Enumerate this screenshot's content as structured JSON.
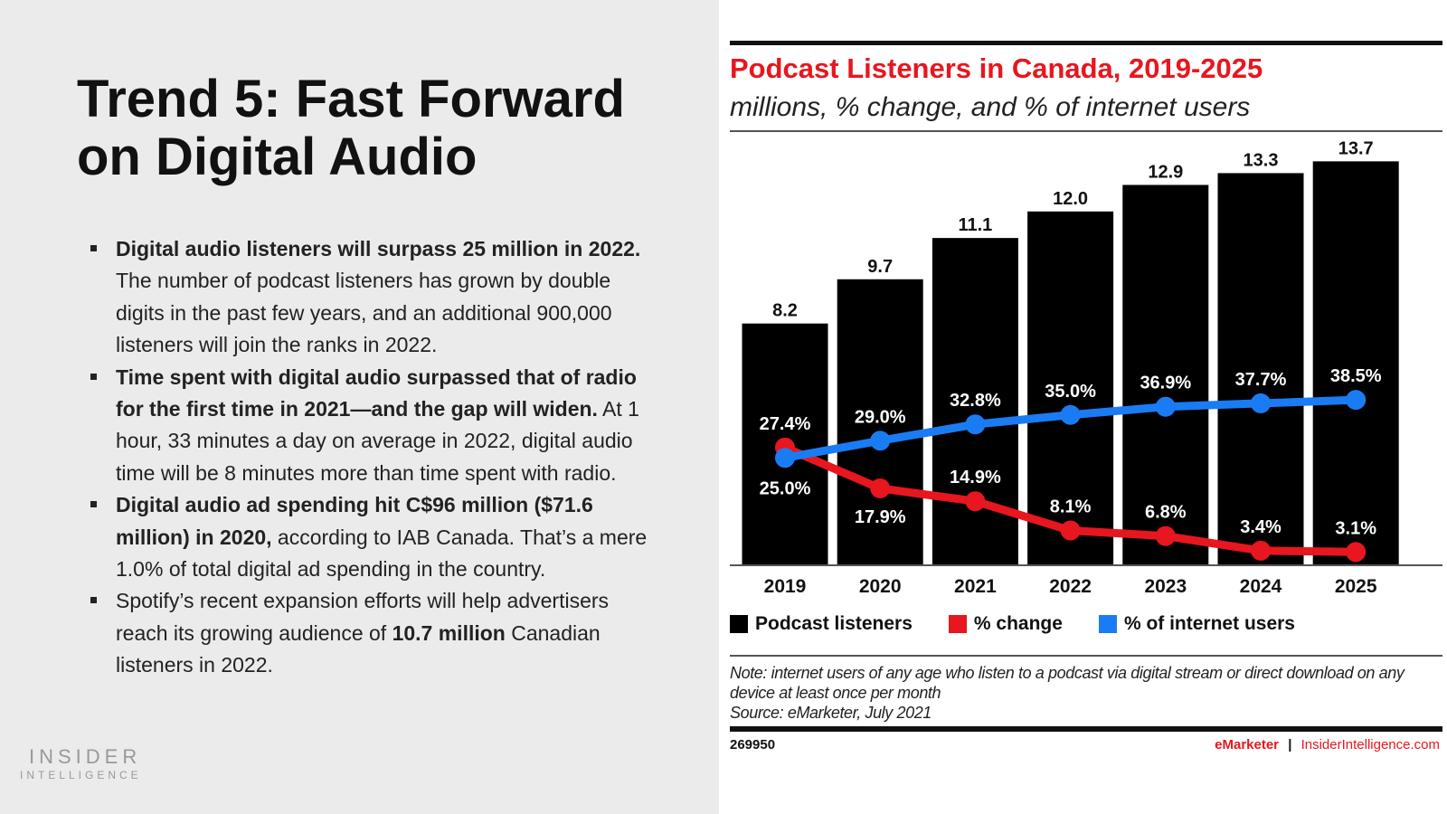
{
  "slide": {
    "title": "Trend 5: Fast Forward on Digital Audio",
    "bullets": [
      {
        "bold": "Digital audio listeners will surpass 25 million in 2022.",
        "text": " The number of podcast listeners has grown by double digits in the past few years, and an additional 900,000 listeners will join the ranks in 2022."
      },
      {
        "bold": "Time spent with digital audio surpassed that of radio for the first time in 2021—and the gap will widen.",
        "text": " At 1 hour, 33 minutes a day on average in 2022, digital audio time will be 8 minutes more than time spent with radio."
      },
      {
        "bold": "Digital audio ad spending hit C$96 million ($71.6 million) in 2020,",
        "text": " according to IAB Canada. That’s a mere 1.0% of total digital ad spending in the country."
      },
      {
        "pre": "Spotify’s recent expansion efforts will help advertisers reach its growing audience of ",
        "bold": "10.7 million",
        "text": " Canadian listeners in 2022."
      }
    ],
    "logo_line1": "INSIDER",
    "logo_line2": "INTELLIGENCE"
  },
  "chart_data": {
    "type": "bar",
    "title": "Podcast Listeners in Canada, 2019-2025",
    "subtitle": "millions, % change, and % of internet users",
    "categories": [
      "2019",
      "2020",
      "2021",
      "2022",
      "2023",
      "2024",
      "2025"
    ],
    "series": [
      {
        "name": "Podcast listeners",
        "type": "bar",
        "color": "#000000",
        "values": [
          8.2,
          9.7,
          11.1,
          12.0,
          12.9,
          13.3,
          13.7
        ],
        "labels": [
          "8.2",
          "9.7",
          "11.1",
          "12.0",
          "12.9",
          "13.3",
          "13.7"
        ]
      },
      {
        "name": "% change",
        "type": "line",
        "color": "#e8161e",
        "values": [
          27.4,
          17.9,
          14.9,
          8.1,
          6.8,
          3.4,
          3.1
        ],
        "labels": [
          "27.4%",
          "17.9%",
          "14.9%",
          "8.1%",
          "6.8%",
          "3.4%",
          "3.1%"
        ]
      },
      {
        "name": "% of internet users",
        "type": "line",
        "color": "#1a7cf5",
        "values": [
          25.0,
          29.0,
          32.8,
          35.0,
          36.9,
          37.7,
          38.5
        ],
        "labels": [
          "25.0%",
          "29.0%",
          "32.8%",
          "35.0%",
          "36.9%",
          "37.7%",
          "38.5%"
        ]
      }
    ],
    "legend": "bottom",
    "grid": false,
    "note": "Note: internet users of any age who listen to a podcast via digital stream or direct download on any device at least once per month",
    "source": "Source: eMarketer, July 2021",
    "chart_id": "269950",
    "footer_brand": "eMarketer",
    "footer_sep": "|",
    "footer_site": "InsiderIntelligence.com"
  }
}
